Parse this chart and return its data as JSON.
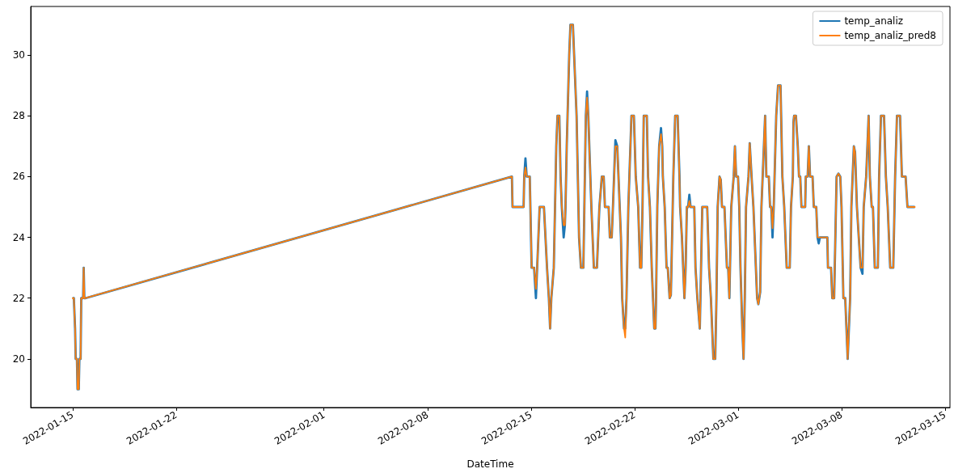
{
  "chart_data": {
    "type": "line",
    "xlabel": "DateTime",
    "legend": "top right",
    "line_style": "solid",
    "xlim": [
      "2022-01-12T04:00",
      "2022-03-15T08:00"
    ],
    "xticks": [
      "2022-01-15",
      "2022-01-22",
      "2022-02-01",
      "2022-02-08",
      "2022-02-15",
      "2022-02-22",
      "2022-03-01",
      "2022-03-08",
      "2022-03-15"
    ],
    "ylim": [
      18.4,
      31.6
    ],
    "yticks": [
      20,
      22,
      24,
      26,
      28,
      30
    ],
    "x": [
      "2022-01-15T00:00",
      "2022-01-15T02:00",
      "2022-01-15T04:00",
      "2022-01-15T05:00",
      "2022-01-15T07:00",
      "2022-01-15T08:00",
      "2022-01-15T10:00",
      "2022-01-15T11:00",
      "2022-01-15T13:00",
      "2022-01-15T14:00",
      "2022-01-15T17:00",
      "2022-01-15T18:00",
      "2022-01-15T19:00",
      "2022-01-15T21:00",
      "2022-02-13T17:00",
      "2022-02-13T18:00",
      "2022-02-14T12:00",
      "2022-02-14T13:00",
      "2022-02-14T15:00",
      "2022-02-14T17:00",
      "2022-02-14T22:00",
      "2022-02-14T23:00",
      "2022-02-15T01:00",
      "2022-02-15T05:00",
      "2022-02-15T08:00",
      "2022-02-15T10:00",
      "2022-02-15T14:00",
      "2022-02-15T21:00",
      "2022-02-16T02:00",
      "2022-02-16T05:00",
      "2022-02-16T07:00",
      "2022-02-16T09:00",
      "2022-02-16T13:00",
      "2022-02-16T15:00",
      "2022-02-16T17:00",
      "2022-02-16T19:00",
      "2022-02-16T22:00",
      "2022-02-17T00:00",
      "2022-02-17T02:00",
      "2022-02-17T05:00",
      "2022-02-17T07:00",
      "2022-02-17T08:00",
      "2022-02-17T10:00",
      "2022-02-17T14:00",
      "2022-02-17T16:00",
      "2022-02-17T20:00",
      "2022-02-18T02:00",
      "2022-02-18T06:00",
      "2022-02-18T09:00",
      "2022-02-18T13:00",
      "2022-02-18T17:00",
      "2022-02-18T19:00",
      "2022-02-18T21:00",
      "2022-02-19T02:00",
      "2022-02-19T06:00",
      "2022-02-19T11:00",
      "2022-02-19T15:00",
      "2022-02-19T19:00",
      "2022-02-19T22:00",
      "2022-02-20T00:00",
      "2022-02-20T06:00",
      "2022-02-20T08:00",
      "2022-02-20T11:00",
      "2022-02-20T13:00",
      "2022-02-20T17:00",
      "2022-02-20T20:00",
      "2022-02-20T22:00",
      "2022-02-21T02:00",
      "2022-02-21T04:00",
      "2022-02-21T07:00",
      "2022-02-21T09:00",
      "2022-02-21T11:00",
      "2022-02-21T14:00",
      "2022-02-21T19:00",
      "2022-02-21T23:00",
      "2022-02-22T02:00",
      "2022-02-22T06:00",
      "2022-02-22T09:00",
      "2022-02-22T11:00",
      "2022-02-22T13:00",
      "2022-02-22T15:00",
      "2022-02-22T20:00",
      "2022-02-22T22:00",
      "2022-02-23T01:00",
      "2022-02-23T04:00",
      "2022-02-23T06:00",
      "2022-02-23T08:00",
      "2022-02-23T10:00",
      "2022-02-23T11:00",
      "2022-02-23T13:00",
      "2022-02-23T16:00",
      "2022-02-23T19:00",
      "2022-02-23T21:00",
      "2022-02-23T22:00",
      "2022-02-24T01:00",
      "2022-02-24T04:00",
      "2022-02-24T06:00",
      "2022-02-24T09:00",
      "2022-02-24T11:00",
      "2022-02-24T12:00",
      "2022-02-24T15:00",
      "2022-02-24T18:00",
      "2022-02-24T22:00",
      "2022-02-25T01:00",
      "2022-02-25T02:00",
      "2022-02-25T05:00",
      "2022-02-25T07:00",
      "2022-02-25T09:00",
      "2022-02-25T11:00",
      "2022-02-25T13:00",
      "2022-02-25T15:00",
      "2022-02-25T17:00",
      "2022-02-25T19:00",
      "2022-02-26T01:00",
      "2022-02-26T03:00",
      "2022-02-26T06:00",
      "2022-02-26T10:00",
      "2022-02-26T11:00",
      "2022-02-26T12:00",
      "2022-02-26T14:00",
      "2022-02-26T18:00",
      "2022-02-26T22:00",
      "2022-02-27T01:00",
      "2022-02-27T04:00",
      "2022-02-27T06:00",
      "2022-02-27T08:00",
      "2022-02-27T11:00",
      "2022-02-27T13:00",
      "2022-02-27T15:00",
      "2022-02-27T18:00",
      "2022-02-27T20:00",
      "2022-02-27T22:00",
      "2022-02-28T02:00",
      "2022-02-28T04:00",
      "2022-02-28T06:00",
      "2022-02-28T08:00",
      "2022-02-28T10:00",
      "2022-02-28T11:00",
      "2022-02-28T13:00",
      "2022-02-28T17:00",
      "2022-02-28T19:00",
      "2022-02-28T21:00",
      "2022-03-01T00:00",
      "2022-03-01T02:00",
      "2022-03-01T04:00",
      "2022-03-01T07:00",
      "2022-03-01T09:00",
      "2022-03-01T11:00",
      "2022-03-01T13:00",
      "2022-03-01T17:00",
      "2022-03-01T19:00",
      "2022-03-01T22:00",
      "2022-03-02T01:00",
      "2022-03-02T05:00",
      "2022-03-02T07:00",
      "2022-03-02T09:00",
      "2022-03-02T12:00",
      "2022-03-02T14:00",
      "2022-03-02T18:00",
      "2022-03-02T20:00",
      "2022-03-02T22:00",
      "2022-03-03T02:00",
      "2022-03-03T04:00",
      "2022-03-03T06:00",
      "2022-03-03T08:00",
      "2022-03-03T10:00",
      "2022-03-03T14:00",
      "2022-03-03T17:00",
      "2022-03-03T21:00",
      "2022-03-04T00:00",
      "2022-03-04T03:00",
      "2022-03-04T07:00",
      "2022-03-04T12:00",
      "2022-03-04T14:00",
      "2022-03-04T17:00",
      "2022-03-04T18:00",
      "2022-03-04T19:00",
      "2022-03-04T22:00",
      "2022-03-05T01:00",
      "2022-03-05T03:00",
      "2022-03-05T05:00",
      "2022-03-05T07:00",
      "2022-03-05T13:00",
      "2022-03-05T14:00",
      "2022-03-05T17:00",
      "2022-03-05T19:00",
      "2022-03-05T21:00",
      "2022-03-06T01:00",
      "2022-03-06T03:00",
      "2022-03-06T07:00",
      "2022-03-06T09:00",
      "2022-03-06T11:00",
      "2022-03-06T13:00",
      "2022-03-07T01:00",
      "2022-03-07T02:00",
      "2022-03-07T07:00",
      "2022-03-07T09:00",
      "2022-03-07T12:00",
      "2022-03-07T13:00",
      "2022-03-07T15:00",
      "2022-03-07T16:00",
      "2022-03-07T19:00",
      "2022-03-07T22:00",
      "2022-03-08T00:00",
      "2022-03-08T03:00",
      "2022-03-08T06:00",
      "2022-03-08T08:00",
      "2022-03-08T10:00",
      "2022-03-08T12:00",
      "2022-03-08T14:00",
      "2022-03-08T16:00",
      "2022-03-08T18:00",
      "2022-03-08T20:00",
      "2022-03-08T22:00",
      "2022-03-09T01:00",
      "2022-03-09T04:00",
      "2022-03-09T07:00",
      "2022-03-09T10:00",
      "2022-03-09T12:00",
      "2022-03-09T16:00",
      "2022-03-09T18:00",
      "2022-03-09T20:00",
      "2022-03-09T22:00",
      "2022-03-10T01:00",
      "2022-03-10T03:00",
      "2022-03-10T06:00",
      "2022-03-10T11:00",
      "2022-03-10T13:00",
      "2022-03-10T16:00",
      "2022-03-10T21:00",
      "2022-03-11T00:00",
      "2022-03-11T03:00",
      "2022-03-11T05:00",
      "2022-03-11T07:00",
      "2022-03-11T12:00",
      "2022-03-11T14:00",
      "2022-03-11T15:00",
      "2022-03-11T18:00",
      "2022-03-11T23:00",
      "2022-03-12T02:00",
      "2022-03-12T08:00",
      "2022-03-12T11:00",
      "2022-03-12T23:00"
    ],
    "series": [
      {
        "name": "temp_analiz",
        "color": "#1f77b4",
        "values": [
          22,
          22,
          21,
          20,
          20,
          19,
          19,
          20,
          20,
          22,
          22,
          23,
          22,
          22,
          26,
          25,
          25,
          26,
          26.6,
          26,
          26,
          25,
          23,
          23,
          22,
          23,
          25,
          25,
          23,
          22,
          21,
          22,
          23,
          25,
          27,
          28,
          28,
          26,
          25,
          24,
          24.4,
          25,
          27,
          30,
          31,
          31,
          28,
          24,
          23,
          23,
          28,
          28.8,
          28,
          25,
          23,
          23,
          25,
          26,
          26,
          25,
          25,
          24,
          24,
          25,
          27.2,
          27,
          26,
          24,
          22,
          21,
          21,
          22,
          25,
          28,
          28,
          26,
          25,
          23,
          23,
          25,
          28,
          28,
          26,
          25,
          23,
          22,
          21,
          21,
          22,
          25,
          27,
          27.6,
          27,
          26,
          25,
          23,
          23,
          22,
          22.1,
          23,
          26,
          28,
          28,
          26,
          25,
          24,
          23,
          22,
          23,
          25,
          25,
          25.4,
          25,
          25,
          23,
          22,
          21,
          22,
          23,
          25,
          25,
          25,
          23,
          22,
          21,
          20,
          20,
          22,
          25,
          26,
          25.9,
          25,
          25,
          24,
          23,
          23,
          22,
          23,
          25,
          26,
          27,
          26,
          26,
          25,
          23,
          21,
          20,
          22,
          25,
          26,
          27.1,
          26,
          25,
          23,
          22,
          21.8,
          22.2,
          25,
          27,
          28,
          26,
          26,
          25,
          25,
          24,
          25,
          28,
          29,
          29,
          26,
          25,
          23,
          23,
          25,
          26,
          27.8,
          28,
          28,
          27,
          26,
          26,
          25,
          25,
          26,
          26,
          27,
          26,
          26,
          25,
          25,
          24,
          23.8,
          24,
          24,
          23,
          23,
          22,
          22,
          23,
          25,
          26,
          26.1,
          26,
          25,
          22,
          22,
          21,
          20,
          21,
          22,
          25,
          26,
          27,
          26.8,
          25,
          24,
          23,
          22.8,
          25,
          26,
          27,
          28,
          26,
          25,
          25,
          23,
          23,
          26,
          28,
          28,
          26,
          25,
          24,
          23,
          23,
          25,
          26,
          28,
          28,
          26,
          26,
          25,
          25
        ]
      },
      {
        "name": "temp_analiz_pred8",
        "color": "#ff7f0e",
        "values": [
          22,
          22,
          21,
          20,
          20,
          19,
          19,
          20,
          20,
          22,
          22,
          23,
          22,
          22,
          26,
          25,
          25,
          26,
          26.3,
          26,
          26,
          25,
          23,
          23,
          22.3,
          23,
          25,
          25,
          23,
          22,
          21,
          22,
          23,
          25,
          27,
          28,
          28,
          26,
          25,
          24.4,
          24.4,
          25,
          27,
          30,
          31,
          31,
          28,
          24,
          23,
          23,
          28,
          28.6,
          28,
          25,
          23,
          23,
          25,
          26,
          26,
          25,
          25,
          24,
          24,
          25,
          27,
          27,
          26,
          24,
          22,
          21,
          20.7,
          22,
          25,
          28,
          28,
          26,
          25,
          23,
          23,
          25,
          28,
          28,
          26,
          25,
          23,
          22,
          21,
          21,
          22,
          25,
          27,
          27.4,
          27,
          26,
          25,
          23,
          23,
          22,
          22.1,
          23,
          26,
          28,
          28,
          26,
          25,
          24,
          23,
          22,
          23,
          25,
          25,
          25.2,
          25,
          25,
          23,
          22,
          21,
          22,
          23,
          25,
          25,
          25,
          23,
          22,
          21,
          20,
          20,
          22,
          25,
          26,
          25.9,
          25,
          25,
          24,
          23,
          23,
          22,
          23,
          25,
          26,
          27,
          26,
          26,
          25,
          23,
          21,
          20,
          22,
          25,
          26,
          27.1,
          26,
          25,
          23,
          22,
          21.8,
          22.2,
          25,
          27,
          28,
          26,
          26,
          25,
          25,
          24.3,
          25,
          28,
          29,
          29,
          26,
          25,
          23,
          23,
          25,
          26,
          27.8,
          28,
          28,
          27,
          26,
          26,
          25,
          25,
          26,
          26,
          27,
          26,
          26,
          25,
          25,
          24,
          24,
          24,
          24,
          23,
          23,
          22,
          22,
          23,
          25,
          26,
          26.1,
          26,
          25,
          22,
          22,
          21,
          20,
          21,
          22,
          25,
          26,
          27,
          26.8,
          25,
          24,
          23,
          23,
          25,
          26,
          27,
          28,
          26,
          25,
          25,
          23,
          23,
          26,
          28,
          28,
          26,
          25,
          24,
          23,
          23,
          25,
          26,
          28,
          28,
          26,
          26,
          25,
          25
        ]
      }
    ]
  }
}
